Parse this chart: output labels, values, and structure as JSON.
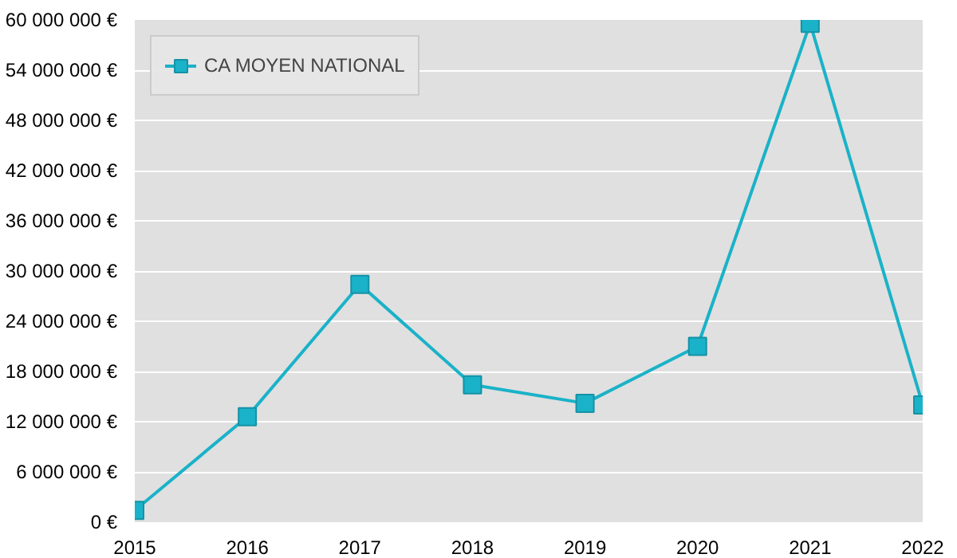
{
  "chart_data": {
    "type": "line",
    "x": [
      2015,
      2016,
      2017,
      2018,
      2019,
      2020,
      2021,
      2022
    ],
    "series": [
      {
        "name": "CA MOYEN NATIONAL",
        "color": "#1ab2c8",
        "values": [
          1400000,
          12600000,
          28400000,
          16400000,
          14200000,
          21000000,
          59600000,
          14000000
        ]
      }
    ],
    "xlim": [
      2015,
      2022
    ],
    "xticks": [
      2015,
      2016,
      2017,
      2018,
      2019,
      2020,
      2021,
      2022
    ],
    "ylim": [
      0,
      60000000
    ],
    "yticks": [
      {
        "value": 0,
        "label": "0 €"
      },
      {
        "value": 6000000,
        "label": "6 000 000 €"
      },
      {
        "value": 12000000,
        "label": "12 000 000 €"
      },
      {
        "value": 18000000,
        "label": "18 000 000 €"
      },
      {
        "value": 24000000,
        "label": "24 000 000 €"
      },
      {
        "value": 30000000,
        "label": "30 000 000 €"
      },
      {
        "value": 36000000,
        "label": "36 000 000 €"
      },
      {
        "value": 42000000,
        "label": "42 000 000 €"
      },
      {
        "value": 48000000,
        "label": "48 000 000 €"
      },
      {
        "value": 54000000,
        "label": "54 000 000 €"
      },
      {
        "value": 60000000,
        "label": "60 000 000 €"
      }
    ],
    "grid": "y",
    "legend": "top left",
    "marker": "square",
    "line_style": "solid"
  }
}
